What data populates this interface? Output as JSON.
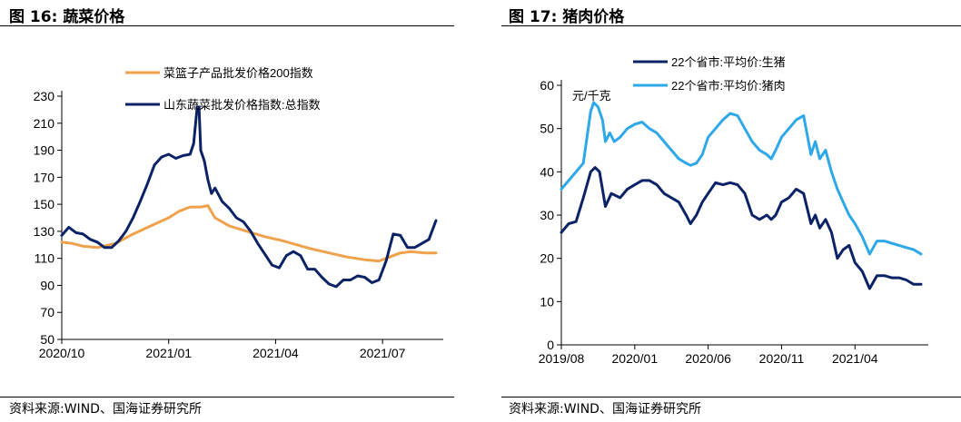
{
  "left": {
    "figure_title": "图 16:  蔬菜价格",
    "source": "资料来源:WIND、国海证券研究所",
    "colors": {
      "series_a": "#F0A14B",
      "series_b": "#0B2366"
    }
  },
  "right": {
    "figure_title": "图 17:  猪肉价格",
    "source": "资料来源:WIND、国海证券研究所",
    "unit_label": "元/千克",
    "colors": {
      "series_a": "#0B2366",
      "series_b": "#2EA8E8"
    }
  },
  "chart_data": [
    {
      "type": "line",
      "title": "蔬菜价格",
      "xlabel": "",
      "ylabel": "",
      "ylim": [
        50,
        230
      ],
      "yticks": [
        50,
        70,
        90,
        110,
        130,
        150,
        170,
        190,
        210,
        230
      ],
      "xlim": [
        0,
        10.5
      ],
      "xticks": [
        {
          "label": "2020/10",
          "x": 0
        },
        {
          "label": "2021/01",
          "x": 3
        },
        {
          "label": "2021/04",
          "x": 6
        },
        {
          "label": "2021/07",
          "x": 9
        }
      ],
      "legend": "top-left",
      "grid": false,
      "series": [
        {
          "name": "菜篮子产品批发价格200指数",
          "color": "#F0A14B",
          "x": [
            0,
            0.3,
            0.6,
            1.0,
            1.5,
            2.0,
            2.5,
            3.0,
            3.3,
            3.6,
            3.9,
            4.1,
            4.3,
            4.7,
            5.2,
            5.7,
            6.2,
            6.6,
            7.0,
            7.5,
            8.0,
            8.5,
            8.9,
            9.2,
            9.5,
            9.8,
            10.2,
            10.5
          ],
          "values": [
            122,
            121,
            119,
            118,
            121,
            128,
            134,
            140,
            145,
            148,
            148,
            149,
            140,
            134,
            130,
            126,
            123,
            120,
            117,
            114,
            111,
            109,
            108,
            111,
            114,
            115,
            114,
            114
          ]
        },
        {
          "name": "山东蔬菜批发价格指数:总指数",
          "color": "#0B2366",
          "x": [
            0,
            0.2,
            0.4,
            0.6,
            0.8,
            1.0,
            1.2,
            1.4,
            1.6,
            1.8,
            2.0,
            2.2,
            2.4,
            2.6,
            2.8,
            3.0,
            3.2,
            3.4,
            3.6,
            3.7,
            3.8,
            3.85,
            3.9,
            4.0,
            4.1,
            4.2,
            4.3,
            4.5,
            4.7,
            4.9,
            5.1,
            5.3,
            5.5,
            5.7,
            5.9,
            6.1,
            6.3,
            6.5,
            6.7,
            6.9,
            7.1,
            7.3,
            7.5,
            7.7,
            7.9,
            8.1,
            8.3,
            8.5,
            8.7,
            8.9,
            9.1,
            9.3,
            9.5,
            9.7,
            9.9,
            10.1,
            10.3,
            10.5
          ],
          "values": [
            127,
            133,
            129,
            128,
            124,
            122,
            118,
            118,
            123,
            130,
            140,
            152,
            165,
            179,
            185,
            187,
            184,
            186,
            187,
            195,
            222,
            222,
            190,
            182,
            168,
            158,
            162,
            152,
            147,
            140,
            137,
            130,
            121,
            113,
            105,
            103,
            112,
            115,
            112,
            102,
            102,
            96,
            91,
            89,
            94,
            94,
            97,
            96,
            92,
            94,
            108,
            128,
            127,
            118,
            118,
            121,
            124,
            138
          ]
        }
      ]
    },
    {
      "type": "line",
      "title": "猪肉价格",
      "xlabel": "",
      "ylabel": "元/千克",
      "ylim": [
        0,
        60
      ],
      "yticks": [
        0,
        10,
        20,
        30,
        40,
        50,
        60
      ],
      "xlim": [
        0,
        24.5
      ],
      "xticks": [
        {
          "label": "2019/08",
          "x": 0
        },
        {
          "label": "2020/01",
          "x": 5
        },
        {
          "label": "2020/06",
          "x": 10
        },
        {
          "label": "2020/11",
          "x": 15
        },
        {
          "label": "2021/04",
          "x": 20
        }
      ],
      "legend": "top-center",
      "grid": false,
      "series": [
        {
          "name": "22个省市:平均价:生猪",
          "color": "#0B2366",
          "x": [
            0,
            0.5,
            1.0,
            1.5,
            2.0,
            2.3,
            2.6,
            3.0,
            3.4,
            4.0,
            4.5,
            5.0,
            5.5,
            6.0,
            6.5,
            7.0,
            7.5,
            8.0,
            8.5,
            8.8,
            9.2,
            9.6,
            10.0,
            10.5,
            11.0,
            11.5,
            12.0,
            12.5,
            13.0,
            13.5,
            14.0,
            14.3,
            14.6,
            15.0,
            15.5,
            16.0,
            16.5,
            17.0,
            17.3,
            17.6,
            18.0,
            18.4,
            18.8,
            19.2,
            19.6,
            20.0,
            20.5,
            21.0,
            21.5,
            22.0,
            22.5,
            23.0,
            23.5,
            24.0,
            24.5
          ],
          "values": [
            26,
            28,
            28.5,
            34,
            40,
            41,
            40,
            32,
            35,
            34,
            36,
            37,
            38,
            38,
            37,
            35,
            34,
            33,
            30,
            28,
            30,
            33,
            35,
            37.5,
            37,
            37.5,
            37,
            35,
            30,
            29,
            30,
            29,
            30,
            33,
            34,
            36,
            35,
            28,
            30,
            27,
            29,
            26,
            20,
            22,
            23,
            19,
            17,
            13,
            16,
            16,
            15.5,
            15.5,
            15,
            14,
            14
          ]
        },
        {
          "name": "22个省市:平均价:猪肉",
          "color": "#2EA8E8",
          "x": [
            0,
            0.5,
            1.0,
            1.5,
            2.0,
            2.2,
            2.5,
            2.8,
            3.0,
            3.3,
            3.6,
            4.0,
            4.5,
            5.0,
            5.5,
            6.0,
            6.5,
            7.0,
            7.5,
            8.0,
            8.5,
            8.8,
            9.2,
            9.6,
            10.0,
            10.5,
            11.0,
            11.5,
            12.0,
            12.5,
            13.0,
            13.5,
            14.0,
            14.3,
            14.6,
            15.0,
            15.5,
            16.0,
            16.5,
            17.0,
            17.3,
            17.6,
            18.0,
            18.4,
            18.8,
            19.2,
            19.6,
            20.0,
            20.5,
            21.0,
            21.5,
            22.0,
            22.5,
            23.0,
            23.5,
            24.0,
            24.5
          ],
          "values": [
            36,
            38,
            40,
            42,
            54,
            56,
            55,
            52,
            47,
            49,
            47,
            48,
            50,
            51,
            51.5,
            50,
            49,
            47,
            45,
            43,
            42,
            41.5,
            42,
            44,
            48,
            50,
            52,
            53.5,
            53,
            50,
            47,
            45,
            44,
            43,
            45,
            48,
            50,
            52,
            53,
            44,
            47,
            43,
            45,
            40,
            36,
            33,
            30,
            28,
            25,
            21,
            24,
            24,
            23.5,
            23,
            22.5,
            22,
            21
          ]
        }
      ]
    }
  ]
}
